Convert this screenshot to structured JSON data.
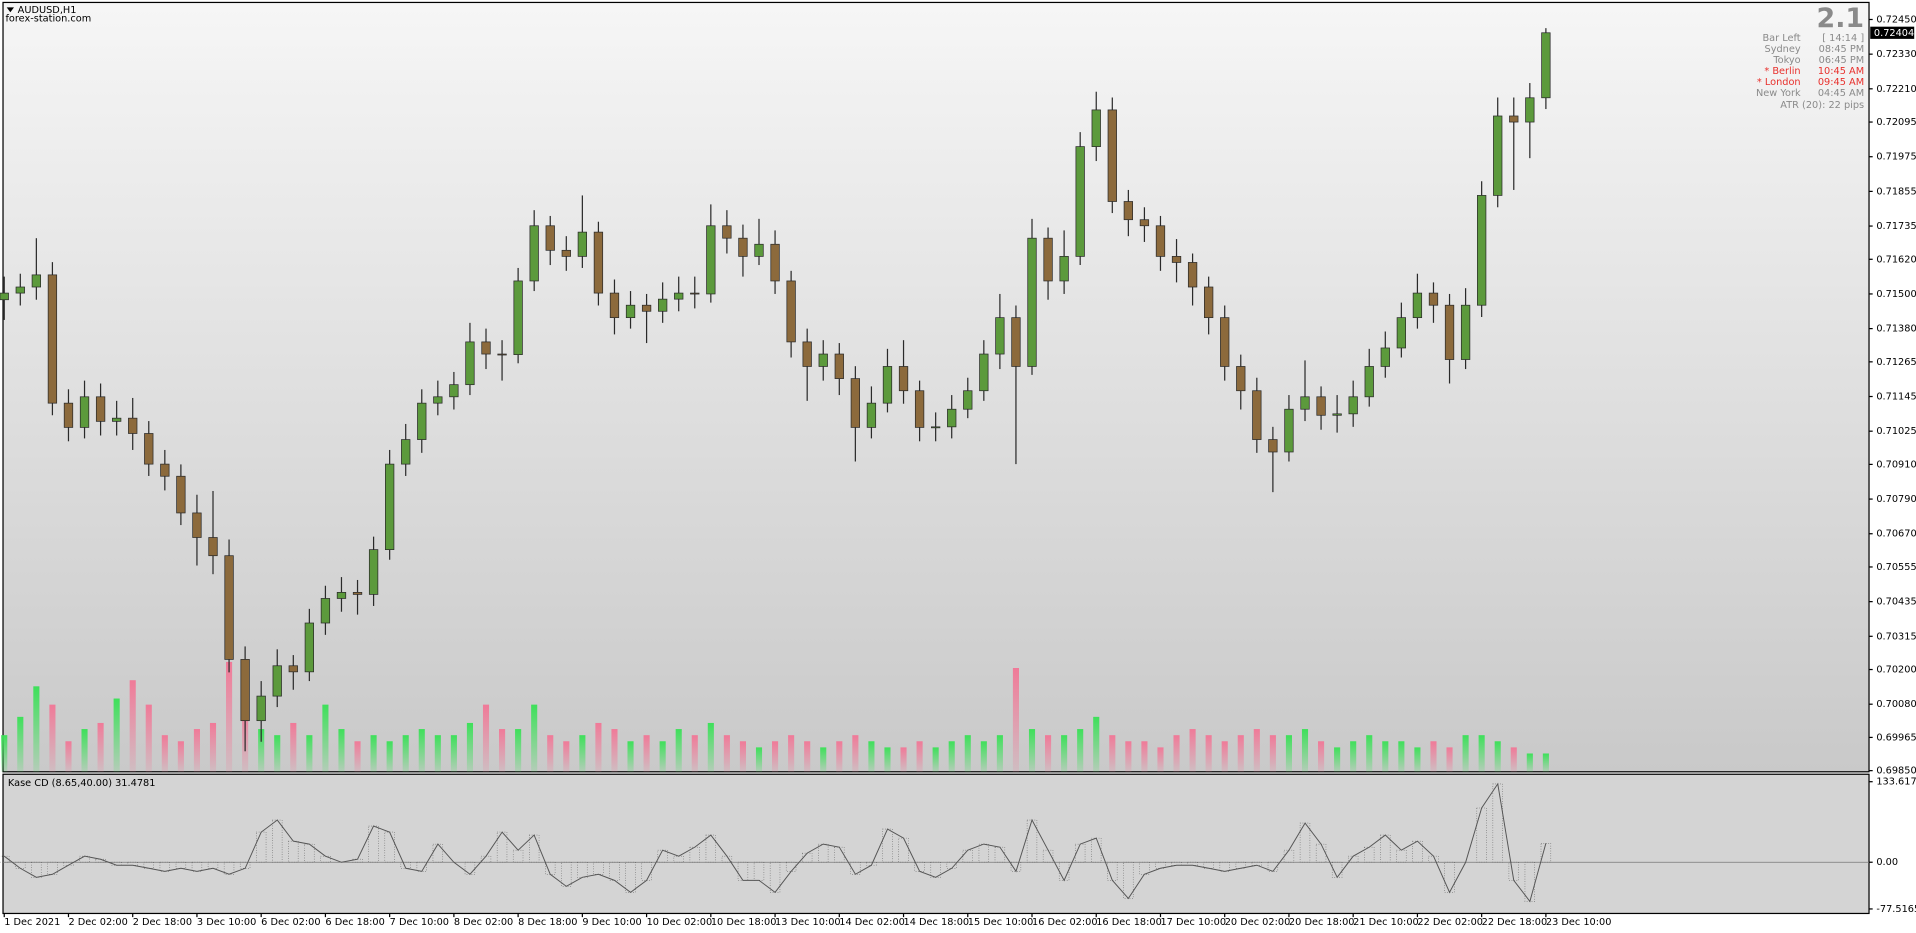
{
  "header": {
    "symbol": "AUDUSD,H1",
    "site": "forex-station.com"
  },
  "info_panel": {
    "version": "2.1",
    "rows": [
      {
        "label": "Bar Left",
        "value": "[ 14:14 ]",
        "color": "#8a8a8a"
      },
      {
        "label": "Sydney",
        "value": "08:45 PM",
        "color": "#8a8a8a"
      },
      {
        "label": "Tokyo",
        "value": "06:45 PM",
        "color": "#8a8a8a"
      },
      {
        "label": "* Berlin",
        "value": "10:45 AM",
        "color": "#e8302c"
      },
      {
        "label": "* London",
        "value": "09:45 AM",
        "color": "#e8302c"
      },
      {
        "label": "New York",
        "value": "04:45 AM",
        "color": "#8a8a8a"
      }
    ],
    "atr": "ATR (20): 22 pips"
  },
  "chart_data": [
    {
      "type": "candlestick",
      "categories": [
        "1 Dec 2021",
        null,
        null,
        null,
        "2 Dec 02:00",
        null,
        null,
        null,
        "2 Dec 18:00",
        null,
        null,
        null,
        "3 Dec 10:00",
        null,
        null,
        null,
        "6 Dec 02:00",
        null,
        null,
        null,
        "6 Dec 18:00",
        null,
        null,
        null,
        "7 Dec 10:00",
        null,
        null,
        null,
        "8 Dec 02:00",
        null,
        null,
        null,
        "8 Dec 18:00",
        null,
        null,
        null,
        "9 Dec 10:00",
        null,
        null,
        null,
        "10 Dec 02:00",
        null,
        null,
        null,
        "10 Dec 18:00",
        null,
        null,
        null,
        "13 Dec 10:00",
        null,
        null,
        null,
        "14 Dec 02:00",
        null,
        null,
        null,
        "14 Dec 18:00",
        null,
        null,
        null,
        "15 Dec 10:00",
        null,
        null,
        null,
        "16 Dec 02:00",
        null,
        null,
        null,
        "16 Dec 18:00",
        null,
        null,
        null,
        "17 Dec 10:00",
        null,
        null,
        null,
        "20 Dec 02:00",
        null,
        null,
        null,
        "20 Dec 18:00",
        null,
        null,
        null,
        "21 Dec 10:00",
        null,
        null,
        null,
        "22 Dec 02:00",
        null,
        null,
        null,
        "22 Dec 18:00",
        null,
        null,
        null,
        "23 Dec 10:00"
      ],
      "open": [
        0.7148,
        0.71503,
        0.71524,
        0.71566,
        0.71122,
        0.71038,
        0.71144,
        0.71059,
        0.7107,
        0.71017,
        0.70911,
        0.70869,
        0.70742,
        0.70657,
        0.70594,
        0.70235,
        0.70023,
        0.70108,
        0.70213,
        0.70192,
        0.70361,
        0.70446,
        0.70467,
        0.7046,
        0.70615,
        0.70911,
        0.70996,
        0.71122,
        0.71144,
        0.71186,
        0.71334,
        0.71292,
        0.7129,
        0.71545,
        0.71736,
        0.71651,
        0.7163,
        0.71714,
        0.71503,
        0.71418,
        0.71461,
        0.7144,
        0.71482,
        0.71503,
        0.715,
        0.71736,
        0.71693,
        0.7163,
        0.71672,
        0.71545,
        0.71334,
        0.71249,
        0.71292,
        0.71207,
        0.71038,
        0.71122,
        0.71249,
        0.71165,
        0.71038,
        0.7104,
        0.71101,
        0.71165,
        0.71292,
        0.71418,
        0.71249,
        0.71693,
        0.71545,
        0.7163,
        0.7201,
        0.72137,
        0.7182,
        0.71757,
        0.71736,
        0.7163,
        0.71609,
        0.71524,
        0.71418,
        0.71249,
        0.71165,
        0.70996,
        0.70953,
        0.71101,
        0.71144,
        0.7108,
        0.71085,
        0.71144,
        0.71249,
        0.71313,
        0.71418,
        0.71503,
        0.71461,
        0.71273,
        0.71461,
        0.71841,
        0.72116,
        0.72095,
        0.72179
      ],
      "high": [
        0.7156,
        0.7157,
        0.71693,
        0.7161,
        0.7117,
        0.712,
        0.7119,
        0.7113,
        0.7114,
        0.7106,
        0.7096,
        0.7091,
        0.70805,
        0.70818,
        0.7065,
        0.7028,
        0.7016,
        0.7027,
        0.7025,
        0.7041,
        0.7049,
        0.7052,
        0.7051,
        0.7066,
        0.7096,
        0.7105,
        0.7117,
        0.712,
        0.7123,
        0.714,
        0.7138,
        0.7134,
        0.7159,
        0.7179,
        0.7177,
        0.717,
        0.71841,
        0.7175,
        0.7155,
        0.7151,
        0.715,
        0.7154,
        0.7156,
        0.7156,
        0.7181,
        0.7179,
        0.7174,
        0.7176,
        0.7172,
        0.7158,
        0.7138,
        0.7134,
        0.7133,
        0.7125,
        0.7118,
        0.7131,
        0.7134,
        0.712,
        0.7109,
        0.7115,
        0.7121,
        0.7134,
        0.715,
        0.7146,
        0.7176,
        0.7173,
        0.7172,
        0.7206,
        0.722,
        0.7218,
        0.7186,
        0.718,
        0.7177,
        0.7169,
        0.7164,
        0.7156,
        0.7146,
        0.7129,
        0.7121,
        0.7104,
        0.7115,
        0.7127,
        0.7118,
        0.7115,
        0.712,
        0.7131,
        0.7137,
        0.7147,
        0.7157,
        0.7154,
        0.715,
        0.7152,
        0.7189,
        0.7218,
        0.7218,
        0.7223,
        0.7242
      ],
      "low": [
        0.7141,
        0.7146,
        0.7148,
        0.7108,
        0.7099,
        0.71,
        0.7101,
        0.7101,
        0.7096,
        0.7087,
        0.7082,
        0.707,
        0.7056,
        0.7053,
        0.7019,
        0.69917,
        0.6995,
        0.7007,
        0.7013,
        0.7016,
        0.7032,
        0.704,
        0.7039,
        0.7042,
        0.7058,
        0.7087,
        0.7095,
        0.7108,
        0.711,
        0.7115,
        0.7124,
        0.712,
        0.7126,
        0.7151,
        0.716,
        0.7158,
        0.7159,
        0.7146,
        0.7136,
        0.7138,
        0.7133,
        0.714,
        0.7144,
        0.7145,
        0.7147,
        0.7164,
        0.7156,
        0.716,
        0.715,
        0.7128,
        0.7113,
        0.712,
        0.7115,
        0.7092,
        0.71,
        0.7109,
        0.7112,
        0.7099,
        0.7099,
        0.71,
        0.7107,
        0.7113,
        0.7124,
        0.70911,
        0.7122,
        0.7148,
        0.715,
        0.716,
        0.7196,
        0.7178,
        0.717,
        0.7168,
        0.7158,
        0.7154,
        0.7146,
        0.7136,
        0.712,
        0.711,
        0.7095,
        0.70814,
        0.7092,
        0.7106,
        0.7103,
        0.7102,
        0.7104,
        0.7111,
        0.7121,
        0.7128,
        0.7138,
        0.714,
        0.7119,
        0.7124,
        0.7142,
        0.718,
        0.7186,
        0.7197,
        0.7214
      ],
      "close": [
        0.71503,
        0.71524,
        0.71566,
        0.71122,
        0.71038,
        0.71144,
        0.71059,
        0.7107,
        0.71017,
        0.70911,
        0.70869,
        0.70742,
        0.70657,
        0.70594,
        0.70235,
        0.70023,
        0.70108,
        0.70213,
        0.70192,
        0.70361,
        0.70446,
        0.70467,
        0.7046,
        0.70615,
        0.70911,
        0.70996,
        0.71122,
        0.71144,
        0.71186,
        0.71334,
        0.71292,
        0.7129,
        0.71545,
        0.71736,
        0.71651,
        0.7163,
        0.71714,
        0.71503,
        0.71418,
        0.71461,
        0.7144,
        0.71482,
        0.71503,
        0.715,
        0.71736,
        0.71693,
        0.7163,
        0.71672,
        0.71545,
        0.71334,
        0.71249,
        0.71292,
        0.71207,
        0.71038,
        0.71122,
        0.71249,
        0.71165,
        0.71038,
        0.7104,
        0.71101,
        0.71165,
        0.71292,
        0.71418,
        0.71249,
        0.71693,
        0.71545,
        0.7163,
        0.7201,
        0.72137,
        0.7182,
        0.71757,
        0.71736,
        0.7163,
        0.71609,
        0.71524,
        0.71418,
        0.71249,
        0.71165,
        0.70996,
        0.70953,
        0.71101,
        0.71144,
        0.7108,
        0.71085,
        0.71144,
        0.71249,
        0.71313,
        0.71418,
        0.71503,
        0.71461,
        0.71273,
        0.71461,
        0.71841,
        0.72116,
        0.72095,
        0.72179,
        0.72404
      ],
      "up_color": "#5c9a3c",
      "down_color": "#8c6a3c",
      "wick_color": "#2a2a2a",
      "last_price": 0.72404,
      "ylim": [
        0.69846,
        0.72509
      ],
      "yticks": [
        {
          "value": 0.7245,
          "label": "0.72450"
        },
        {
          "value": 0.7233,
          "label": "0.72330"
        },
        {
          "value": 0.7221,
          "label": "0.72210"
        },
        0.72095,
        0.71975,
        0.71855,
        0.71735,
        {
          "value": 0.7162,
          "label": "0.71620"
        },
        {
          "value": 0.715,
          "label": "0.71500"
        },
        {
          "value": 0.7138,
          "label": "0.71380"
        },
        0.71265,
        0.71145,
        0.71025,
        {
          "value": 0.7091,
          "label": "0.70910"
        },
        {
          "value": 0.7079,
          "label": "0.70790"
        },
        {
          "value": 0.7067,
          "label": "0.70670"
        },
        0.70555,
        0.70435,
        0.70315,
        {
          "value": 0.702,
          "label": "0.70200"
        },
        {
          "value": 0.7008,
          "label": "0.70080"
        },
        0.69965,
        {
          "value": 0.6985,
          "label": "0.69850"
        }
      ],
      "volume": {
        "values": [
          30,
          45,
          70,
          55,
          25,
          35,
          40,
          60,
          75,
          55,
          30,
          25,
          35,
          40,
          90,
          55,
          35,
          30,
          40,
          30,
          55,
          35,
          25,
          30,
          25,
          30,
          35,
          30,
          30,
          40,
          55,
          35,
          35,
          55,
          30,
          25,
          30,
          40,
          35,
          25,
          30,
          25,
          35,
          30,
          40,
          30,
          25,
          20,
          25,
          30,
          25,
          20,
          25,
          30,
          25,
          20,
          20,
          25,
          20,
          25,
          30,
          25,
          30,
          85,
          35,
          30,
          30,
          35,
          45,
          30,
          25,
          25,
          20,
          30,
          35,
          30,
          25,
          30,
          35,
          30,
          30,
          35,
          25,
          20,
          25,
          30,
          25,
          25,
          20,
          25,
          20,
          30,
          30,
          25,
          20,
          15,
          15
        ],
        "up_color": "#3ee05a",
        "down_color": "#f07a98"
      }
    },
    {
      "type": "histogram",
      "title": "Kase CD (8.65,40.00) 31.4781",
      "values": [
        10,
        -10,
        -25,
        -20,
        -5,
        10,
        5,
        -5,
        -5,
        -10,
        -15,
        -10,
        -15,
        -10,
        -20,
        -10,
        50,
        70,
        35,
        30,
        10,
        0,
        5,
        60,
        50,
        -10,
        -15,
        30,
        0,
        -20,
        10,
        50,
        20,
        45,
        -20,
        -40,
        -25,
        -20,
        -30,
        -50,
        -30,
        20,
        10,
        25,
        45,
        10,
        -30,
        -30,
        -50,
        -15,
        15,
        30,
        25,
        -20,
        -5,
        55,
        40,
        -15,
        -25,
        -10,
        20,
        30,
        25,
        -15,
        70,
        20,
        -30,
        30,
        40,
        -30,
        -60,
        -20,
        -10,
        -5,
        -5,
        -10,
        -15,
        -10,
        -5,
        -15,
        20,
        65,
        30,
        -25,
        10,
        25,
        45,
        20,
        35,
        10,
        -50,
        0,
        90,
        130,
        -30,
        -65,
        31.4781
      ],
      "color": "#555555",
      "ylim": [
        -85,
        146
      ],
      "yticks": [
        133.6173,
        {
          "value": 0,
          "label": "0.00"
        },
        -77.5165
      ]
    }
  ]
}
